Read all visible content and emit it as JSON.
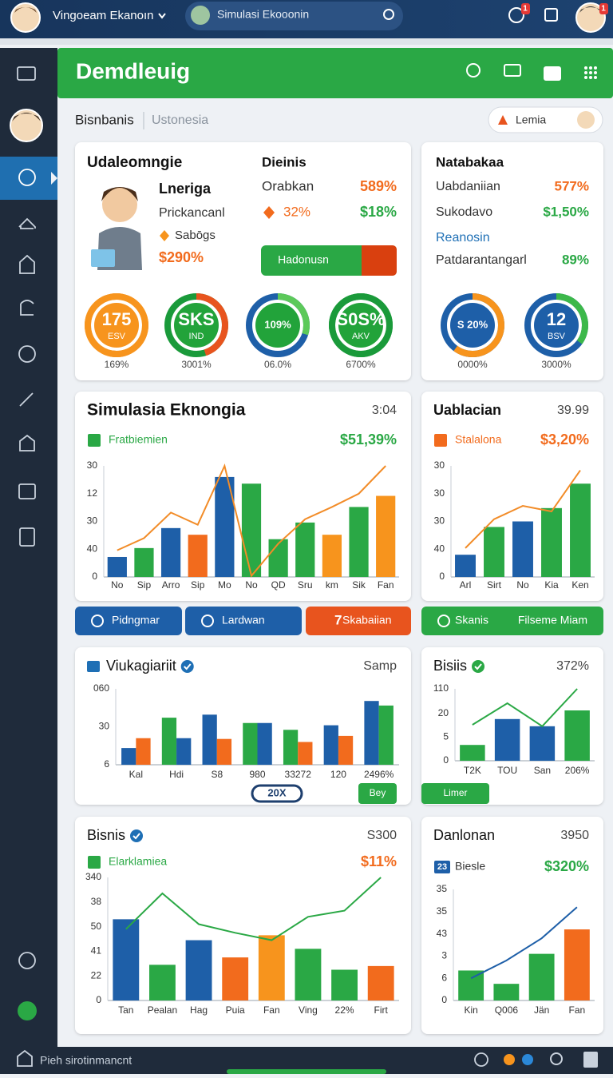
{
  "topbar": {
    "app_name": "Vingoeam Ekanoın",
    "search_tab": "Simulasi Ekooonin",
    "notification_badge": "1",
    "window_badge": "1"
  },
  "header": {
    "title": "Demdleuig"
  },
  "breadcrumb": {
    "section": "Bisnbanis",
    "region": "Ustonesia",
    "user": "Lemia"
  },
  "profile_card": {
    "title": "Udaleomngie",
    "name": "Lneriga",
    "role": "Prickancanl",
    "tag": "Sabōgs",
    "amount": "$290%",
    "stats_title": "Dieinis",
    "stats": [
      {
        "label": "Orabkan",
        "value": "589%",
        "color": "#f26b1d"
      },
      {
        "label": "32%",
        "value": "$18%",
        "color": "#2aa845",
        "label_color": "#f26b1d"
      }
    ],
    "button": "Hadonusn",
    "gauges": [
      {
        "center": "175",
        "sub": "ESV",
        "caption": "169%",
        "fill": 100,
        "color": "#f7941d",
        "track": "#f7941d",
        "inner": "#f7941d"
      },
      {
        "center": "SKS",
        "sub": "IND",
        "caption": "3001%",
        "fill": 45,
        "color": "#e8541e",
        "track": "#1a9a3a",
        "inner": "#22a33a"
      },
      {
        "center": "109%",
        "caption": "06.0%",
        "fill": 30,
        "color": "#5cc95a",
        "track": "#1e5fa8",
        "inner": "#22a33a"
      },
      {
        "center": "S0S%",
        "sub": "AKV",
        "caption": "6700%",
        "fill": 100,
        "color": "#1a9a3a",
        "track": "#1a9a3a",
        "inner": "#22a33a"
      }
    ]
  },
  "summary_card": {
    "title": "Natabakaa",
    "stats": [
      {
        "label": "Uabdaniian",
        "value": "577%",
        "color": "#f26b1d"
      },
      {
        "label": "Sukodavo",
        "value": "$1,50%",
        "color": "#2aa845"
      },
      {
        "label": "Reanosin",
        "label_color": "#1e6fb5"
      },
      {
        "label": "Patdarantangarl",
        "value": "89%",
        "color": "#2aa845"
      }
    ],
    "gauges": [
      {
        "center": "S 20%",
        "caption": "0000%",
        "fill": 60,
        "color": "#f7941d",
        "track": "#1e5fa8",
        "inner": "#1e5fa8"
      },
      {
        "center": "12",
        "sub": "BSV",
        "caption": "3000%",
        "fill": 35,
        "color": "#3cb84a",
        "track": "#1e5fa8",
        "inner": "#1e5fa8"
      }
    ]
  },
  "action_buttons": [
    {
      "label": "Pidngmar",
      "color": "#1e5fa8"
    },
    {
      "label": "Lardwan",
      "color": "#1e5fa8"
    },
    {
      "prefix": "7",
      "label": "Skabaiian",
      "color": "#e8541e"
    },
    {
      "label": "Skanis",
      "extra": "Filseme Miam",
      "color": "#2aa845"
    }
  ],
  "charts": [
    {
      "type": "bar",
      "title": "Simulasia Eknongia",
      "corner": "3:04",
      "headline": "$51,39%",
      "headline_color": "#2aa845",
      "legend_color": "#2aa845",
      "ylim": [
        0,
        100
      ],
      "yticks": [
        0,
        {
          "value": 25,
          "label": "40"
        },
        {
          "value": 50,
          "label": "30"
        },
        {
          "value": 75,
          "label": "12"
        },
        {
          "value": 100,
          "label": "30"
        }
      ],
      "categories": [
        "No",
        "Sip",
        "Arro",
        "Sip",
        "Mo",
        "No",
        "QD",
        "Sru",
        "km",
        "Sik",
        "Fan"
      ],
      "series": [
        {
          "name": "Fratbiemien",
          "type": "bar",
          "values": [
            18,
            26,
            44,
            38,
            90,
            84,
            34,
            49,
            38,
            63,
            73
          ],
          "colors": [
            "#1e5fa8",
            "#2aa845",
            "#1e5fa8",
            "#f26b1d",
            "#1e5fa8",
            "#2aa845",
            "#2aa845",
            "#2aa845",
            "#f7941d",
            "#2aa845",
            "#f7941d"
          ]
        },
        {
          "type": "line",
          "color": "#f28c28",
          "values": [
            24,
            35,
            58,
            47,
            100,
            1,
            30,
            52,
            63,
            75,
            100
          ]
        }
      ]
    },
    {
      "type": "bar",
      "title": "Uablacian",
      "corner": "39.99",
      "headline": "$3,20%",
      "headline_color": "#f26b1d",
      "legend_color": "#f26b1d",
      "ylim": [
        0,
        100
      ],
      "yticks": [
        0,
        {
          "value": 25,
          "label": "40"
        },
        {
          "value": 50,
          "label": "30"
        },
        {
          "value": 75,
          "label": "30"
        },
        {
          "value": 100,
          "label": "30"
        }
      ],
      "categories": [
        "Arl",
        "Sirt",
        "No",
        "Kia",
        "Ken"
      ],
      "series": [
        {
          "name": "Stalalona",
          "type": "bar",
          "values": [
            20,
            45,
            50,
            62,
            84
          ],
          "colors": [
            "#1e5fa8",
            "#2aa845",
            "#1e5fa8",
            "#2aa845",
            "#2aa845"
          ]
        },
        {
          "type": "line",
          "color": "#f28c28",
          "values": [
            26,
            52,
            64,
            59,
            96
          ]
        }
      ]
    },
    {
      "type": "bar",
      "title": "Viukagiariit",
      "corner": "Samp",
      "verified": true,
      "pill": "20X",
      "action": "Bey",
      "ylim": [
        0,
        100
      ],
      "yticks": [
        {
          "value": 0,
          "label": "6"
        },
        {
          "value": 50,
          "label": "30"
        },
        {
          "value": 100,
          "label": "060"
        }
      ],
      "categories": [
        "Kal",
        "Hdi",
        "S8",
        "980",
        "33272",
        "120",
        "2496%"
      ],
      "series": [
        {
          "type": "bar",
          "values": [
            22,
            62,
            66,
            55,
            46,
            52,
            84
          ],
          "colors": [
            "#1e5fa8",
            "#2aa845",
            "#1e5fa8",
            "#2aa845",
            "#2aa845",
            "#1e5fa8",
            "#1e5fa8"
          ]
        },
        {
          "type": "bar",
          "values": [
            35,
            35,
            34,
            55,
            30,
            38,
            78
          ],
          "colors": [
            "#f26b1d",
            "#1e5fa8",
            "#f26b1d",
            "#1e5fa8",
            "#f26b1d",
            "#f26b1d",
            "#2aa845"
          ]
        }
      ]
    },
    {
      "type": "bar",
      "title": "Bisiis",
      "corner": "372%",
      "verified": true,
      "action": "Limer",
      "ylim": [
        0,
        100
      ],
      "yticks": [
        0,
        {
          "value": 33,
          "label": "5"
        },
        {
          "value": 66,
          "label": "20"
        },
        {
          "value": 100,
          "label": "110"
        }
      ],
      "categories": [
        "T2K",
        "TOU",
        "San",
        "206%"
      ],
      "series": [
        {
          "type": "bar",
          "values": [
            22,
            58,
            48,
            70
          ],
          "colors": [
            "#2aa845",
            "#1e5fa8",
            "#1e5fa8",
            "#2aa845"
          ]
        },
        {
          "type": "line",
          "color": "#2aa845",
          "values": [
            50,
            80,
            48,
            100
          ]
        }
      ]
    },
    {
      "type": "bar",
      "title": "Bisnis",
      "corner": "S300",
      "verified": true,
      "headline": "$11%",
      "headline_color": "#f26b1d",
      "legend_color": "#2aa845",
      "ylim": [
        0,
        100
      ],
      "yticks": [
        0,
        {
          "value": 20,
          "label": "22"
        },
        {
          "value": 40,
          "label": "41"
        },
        {
          "value": 60,
          "label": "50"
        },
        {
          "value": 80,
          "label": "38"
        },
        {
          "value": 100,
          "label": "340"
        }
      ],
      "categories": [
        "Tan",
        "Pealan",
        "Hag",
        "Puia",
        "Fan",
        "Ving",
        "22%",
        "Firt"
      ],
      "series": [
        {
          "name": "Elarklamiea",
          "type": "bar",
          "values": [
            66,
            29,
            49,
            35,
            53,
            42,
            25,
            28
          ],
          "colors": [
            "#1e5fa8",
            "#2aa845",
            "#1e5fa8",
            "#f26b1d",
            "#f7941d",
            "#2aa845",
            "#2aa845",
            "#f26b1d"
          ]
        },
        {
          "type": "line",
          "color": "#2aa845",
          "values": [
            58,
            87,
            62,
            55,
            49,
            68,
            73,
            100
          ]
        }
      ]
    },
    {
      "type": "bar",
      "title": "Danlonan",
      "corner": "3950",
      "headline": "$320%",
      "headline_color": "#2aa845",
      "legend_color": "#1e5fa8",
      "legend_badge": "23",
      "ylim": [
        0,
        100
      ],
      "yticks": [
        0,
        {
          "value": 20,
          "label": "6"
        },
        {
          "value": 40,
          "label": "3"
        },
        {
          "value": 60,
          "label": "43"
        },
        {
          "value": 80,
          "label": "35"
        },
        {
          "value": 100,
          "label": "35"
        }
      ],
      "categories": [
        "Kin",
        "Q006",
        "Jän",
        "Fan"
      ],
      "series": [
        {
          "name": "Biesle",
          "type": "bar",
          "values": [
            27,
            15,
            42,
            64
          ],
          "colors": [
            "#2aa845",
            "#2aa845",
            "#2aa845",
            "#f26b1d"
          ]
        },
        {
          "type": "line",
          "color": "#1e5fa8",
          "values": [
            20,
            36,
            56,
            84
          ]
        }
      ]
    }
  ],
  "footer": {
    "status": "Pieh sirotinmancnt"
  }
}
